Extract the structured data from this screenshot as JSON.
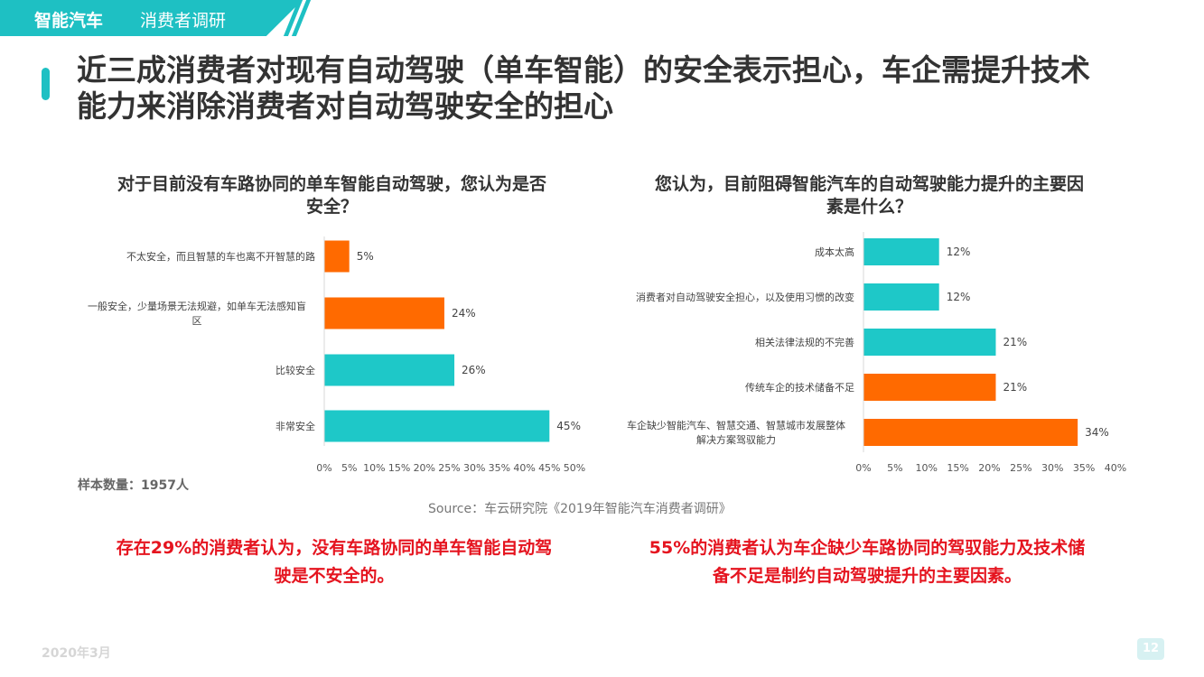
{
  "header": {
    "brand": "智能汽车",
    "section": "消费者调研"
  },
  "page_title": "近三成消费者对现有自动驾驶（单车智能）的安全表示担心，车企需提升技术\n能力来消除消费者对自动驾驶安全的担心",
  "colors": {
    "teal": "#1ec8c8",
    "orange": "#ff6a00",
    "accent": "#1ec0c3",
    "conclusion_red": "#e5141f"
  },
  "chart_data": [
    {
      "type": "bar",
      "orientation": "horizontal",
      "title": "对于目前没有车路协同的单车智能自动驾驶，您认为是否\n安全？",
      "categories": [
        "不太安全，而且智慧的车也离不开智慧的路",
        "一般安全，少量场景无法规避，如单车无法感知盲区",
        "比较安全",
        "非常安全"
      ],
      "values": [
        5,
        24,
        26,
        45
      ],
      "value_labels": [
        "5%",
        "24%",
        "26%",
        "45%"
      ],
      "bar_colors": [
        "#ff6a00",
        "#ff6a00",
        "#1ec8c8",
        "#1ec8c8"
      ],
      "xlim": [
        0,
        50
      ],
      "xticks": [
        "0%",
        "5%",
        "10%",
        "15%",
        "20%",
        "25%",
        "30%",
        "35%",
        "40%",
        "45%",
        "50%"
      ],
      "unit": "%"
    },
    {
      "type": "bar",
      "orientation": "horizontal",
      "title": "您认为，目前阻碍智能汽车的自动驾驶能力提升的主要因\n素是什么？",
      "categories": [
        "成本太高",
        "消费者对自动驾驶安全担心，以及使用习惯的改变",
        "相关法律法规的不完善",
        "传统车企的技术储备不足",
        "车企缺少智能汽车、智慧交通、智慧城市发展整体解决方案驾驭能力"
      ],
      "values": [
        12,
        12,
        21,
        21,
        34
      ],
      "value_labels": [
        "12%",
        "12%",
        "21%",
        "21%",
        "34%"
      ],
      "bar_colors": [
        "#1ec8c8",
        "#1ec8c8",
        "#1ec8c8",
        "#ff6a00",
        "#ff6a00"
      ],
      "xlim": [
        0,
        40
      ],
      "xticks": [
        "0%",
        "5%",
        "10%",
        "15%",
        "20%",
        "25%",
        "30%",
        "35%",
        "40%"
      ],
      "unit": "%"
    }
  ],
  "sample_note": "样本数量：1957人",
  "source": "Source：车云研究院《2019年智能汽车消费者调研》",
  "conclusions": [
    "存在29%的消费者认为，没有车路协同的单车智能自动驾\n驶是不安全的。",
    "55%的消费者认为车企缺少车路协同的驾驭能力及技术储\n备不足是制约自动驾驶提升的主要因素。"
  ],
  "footer": {
    "date": "2020年3月",
    "page_number": "12"
  }
}
